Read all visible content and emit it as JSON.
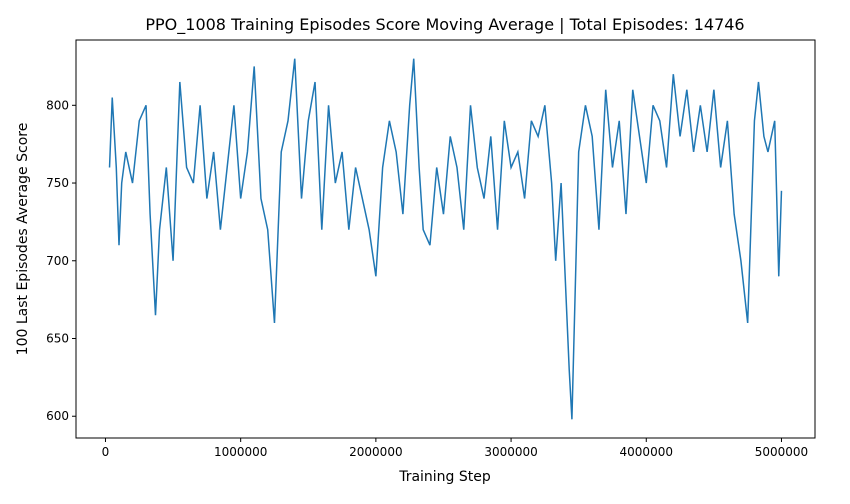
{
  "chart_data": {
    "type": "line",
    "title": "PPO_1008 Training Episodes Score Moving Average | Total Episodes: 14746",
    "x_label": "Training Step",
    "y_label": "100 Last Episodes Average Score",
    "x": [
      30000,
      50000,
      80000,
      100000,
      120000,
      150000,
      200000,
      250000,
      300000,
      330000,
      370000,
      400000,
      450000,
      500000,
      550000,
      600000,
      650000,
      700000,
      750000,
      800000,
      850000,
      900000,
      950000,
      1000000,
      1050000,
      1100000,
      1150000,
      1200000,
      1250000,
      1300000,
      1350000,
      1400000,
      1450000,
      1500000,
      1550000,
      1600000,
      1650000,
      1700000,
      1750000,
      1800000,
      1850000,
      1900000,
      1950000,
      2000000,
      2050000,
      2100000,
      2150000,
      2200000,
      2250000,
      2280000,
      2320000,
      2350000,
      2400000,
      2450000,
      2500000,
      2550000,
      2600000,
      2650000,
      2700000,
      2750000,
      2800000,
      2850000,
      2900000,
      2950000,
      3000000,
      3050000,
      3100000,
      3150000,
      3200000,
      3250000,
      3300000,
      3330000,
      3370000,
      3400000,
      3430000,
      3450000,
      3480000,
      3500000,
      3550000,
      3600000,
      3650000,
      3700000,
      3750000,
      3800000,
      3850000,
      3900000,
      3950000,
      4000000,
      4050000,
      4100000,
      4150000,
      4200000,
      4250000,
      4300000,
      4350000,
      4400000,
      4450000,
      4500000,
      4550000,
      4600000,
      4650000,
      4700000,
      4750000,
      4800000,
      4830000,
      4870000,
      4900000,
      4950000,
      4980000,
      5000000
    ],
    "series": [
      {
        "name": "Score",
        "color": "#1f77b4",
        "values": [
          760,
          805,
          760,
          710,
          750,
          770,
          750,
          790,
          800,
          730,
          665,
          720,
          760,
          700,
          815,
          760,
          750,
          800,
          740,
          770,
          720,
          760,
          800,
          740,
          770,
          825,
          740,
          720,
          660,
          770,
          790,
          830,
          740,
          790,
          815,
          720,
          800,
          750,
          770,
          720,
          760,
          740,
          720,
          690,
          760,
          790,
          770,
          730,
          800,
          830,
          760,
          720,
          710,
          760,
          730,
          780,
          760,
          720,
          800,
          760,
          740,
          780,
          720,
          790,
          760,
          770,
          740,
          790,
          780,
          800,
          750,
          700,
          750,
          690,
          630,
          598,
          700,
          770,
          800,
          780,
          720,
          810,
          760,
          790,
          730,
          810,
          780,
          750,
          800,
          790,
          760,
          820,
          780,
          810,
          770,
          800,
          770,
          810,
          760,
          790,
          730,
          700,
          660,
          790,
          815,
          780,
          770,
          790,
          690,
          745
        ]
      }
    ],
    "xlim": [
      -218000,
      5248000
    ],
    "ylim": [
      586,
      842
    ],
    "xticks": [
      0,
      1000000,
      2000000,
      3000000,
      4000000,
      5000000
    ],
    "yticks": [
      600,
      650,
      700,
      750,
      800
    ],
    "grid": false
  }
}
